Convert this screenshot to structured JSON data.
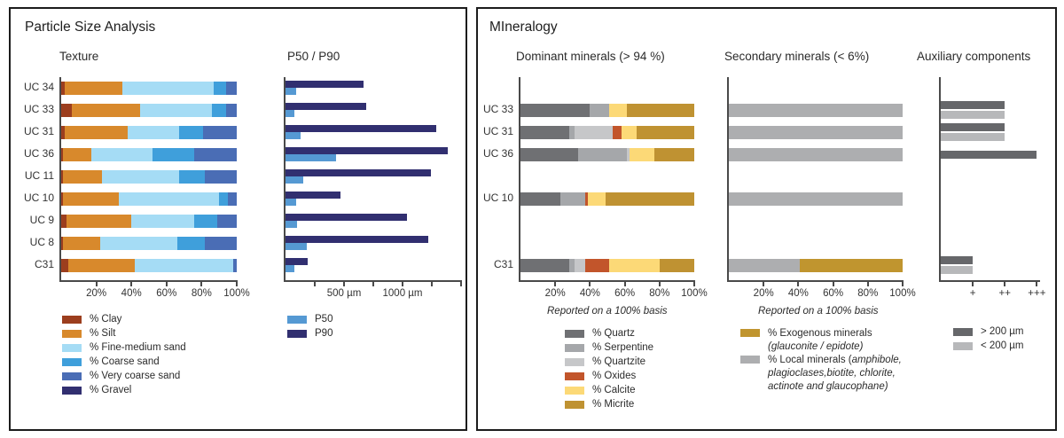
{
  "panels": {
    "particle_size": {
      "title": "Particle Size Analysis"
    },
    "mineralogy": {
      "title": "MIneralogy"
    }
  },
  "chart_data": [
    {
      "id": "texture",
      "type": "bar",
      "variant": "stacked-horizontal",
      "title": "Texture",
      "categories": [
        "UC 34",
        "UC 33",
        "UC 31",
        "UC 36",
        "UC 11",
        "UC 10",
        "UC 9",
        "UC 8",
        "C31"
      ],
      "series": [
        {
          "name": "% Clay",
          "color": "#9c3e1e",
          "values": [
            2,
            6,
            2,
            1,
            1,
            1,
            3,
            1,
            4
          ]
        },
        {
          "name": "% Silt",
          "color": "#d8892c",
          "values": [
            33,
            39,
            36,
            16,
            22,
            32,
            37,
            21,
            38
          ]
        },
        {
          "name": "% Fine-medium sand",
          "color": "#a5dcf5",
          "values": [
            52,
            41,
            29,
            35,
            44,
            57,
            36,
            44,
            56
          ]
        },
        {
          "name": "% Coarse sand",
          "color": "#3f9fdb",
          "values": [
            7,
            8,
            14,
            24,
            15,
            5,
            13,
            16,
            0
          ]
        },
        {
          "name": "% Very coarse sand",
          "color": "#4a6db5",
          "values": [
            6,
            6,
            19,
            24,
            18,
            5,
            11,
            18,
            2
          ]
        },
        {
          "name": "% Gravel",
          "color": "#312f70",
          "values": [
            0,
            0,
            0,
            0,
            0,
            0,
            0,
            0,
            0
          ]
        }
      ],
      "xlim": [
        0,
        100
      ],
      "xticks": [
        {
          "v": 20,
          "label": "20%"
        },
        {
          "v": 40,
          "label": "40%"
        },
        {
          "v": 60,
          "label": "60%"
        },
        {
          "v": 80,
          "label": "80%"
        },
        {
          "v": 100,
          "label": "100%"
        }
      ]
    },
    {
      "id": "p50p90",
      "type": "bar",
      "variant": "grouped-horizontal",
      "title": "P50 / P90",
      "unit": "µm",
      "categories": [
        "UC 34",
        "UC 33",
        "UC 31",
        "UC 36",
        "UC 11",
        "UC 10",
        "UC 9",
        "UC 8",
        "C31"
      ],
      "series": [
        {
          "name": "P90",
          "color": "#312f70",
          "values": [
            670,
            690,
            1290,
            1390,
            1240,
            470,
            1040,
            1220,
            190
          ]
        },
        {
          "name": "P50",
          "color": "#5599d3",
          "values": [
            90,
            75,
            130,
            430,
            150,
            90,
            100,
            185,
            75
          ]
        }
      ],
      "legend_order": [
        1,
        0
      ],
      "xlim": [
        0,
        1500
      ],
      "xticks": [
        {
          "v": 250,
          "label": ""
        },
        {
          "v": 500,
          "label": "500 µm"
        },
        {
          "v": 750,
          "label": ""
        },
        {
          "v": 1000,
          "label": "1000 µm"
        },
        {
          "v": 1250,
          "label": ""
        },
        {
          "v": 1500,
          "label": ""
        }
      ]
    },
    {
      "id": "dominant",
      "type": "bar",
      "variant": "stacked-horizontal",
      "title": "Dominant minerals (> 94 %)",
      "footnote": "Reported on a 100% basis",
      "categories": [
        "UC 33",
        "UC 31",
        "UC 36",
        "UC 10",
        "C31"
      ],
      "row_slots": [
        1,
        2,
        3,
        5,
        8
      ],
      "series": [
        {
          "name": "% Quartz",
          "color": "#6f7073",
          "values": [
            40,
            28,
            33,
            23,
            28
          ]
        },
        {
          "name": "% Serpentine",
          "color": "#a5a7aa",
          "values": [
            11,
            3,
            28,
            14,
            3
          ]
        },
        {
          "name": "% Quartzite",
          "color": "#c6c7c9",
          "values": [
            0,
            22,
            2,
            0,
            6
          ]
        },
        {
          "name": "% Oxides",
          "color": "#c2552b",
          "values": [
            0,
            5,
            0,
            2,
            14
          ]
        },
        {
          "name": "% Calcite",
          "color": "#fcd977",
          "values": [
            10,
            9,
            14,
            10,
            29
          ]
        },
        {
          "name": "% Micrite",
          "color": "#bf9232",
          "values": [
            39,
            33,
            23,
            51,
            20
          ]
        }
      ],
      "xlim": [
        0,
        100
      ],
      "xticks": [
        {
          "v": 20,
          "label": "20%"
        },
        {
          "v": 40,
          "label": "40%"
        },
        {
          "v": 60,
          "label": "60%"
        },
        {
          "v": 80,
          "label": "80%"
        },
        {
          "v": 100,
          "label": "100%"
        }
      ]
    },
    {
      "id": "secondary",
      "type": "bar",
      "variant": "stacked-horizontal",
      "title": "Secondary minerals (< 6%)",
      "footnote": "Reported on a 100% basis",
      "categories": [
        "UC 33",
        "UC 31",
        "UC 36",
        "UC 10",
        "C31"
      ],
      "row_slots": [
        1,
        2,
        3,
        5,
        8
      ],
      "series": [
        {
          "name": "% Local minerals",
          "color": "#adaeb0",
          "values": [
            100,
            100,
            100,
            100,
            41
          ]
        },
        {
          "name": "% Exogenous minerals",
          "color": "#c0952f",
          "values": [
            0,
            0,
            0,
            0,
            59
          ]
        }
      ],
      "legend_rich": [
        {
          "color": "#c0952f",
          "lines": [
            [
              {
                "t": "% Exogenous minerals"
              }
            ],
            [
              {
                "t": "(glauconite / epidote)",
                "i": true
              }
            ]
          ]
        },
        {
          "color": "#adaeb0",
          "lines": [
            [
              {
                "t": "% Local minerals ("
              },
              {
                "t": "amphibole,",
                "i": true
              }
            ],
            [
              {
                "t": "plagioclases,biotite, chlorite,",
                "i": true
              }
            ],
            [
              {
                "t": "actinote and glaucophane)",
                "i": true
              }
            ]
          ]
        }
      ],
      "xlim": [
        0,
        100
      ],
      "xticks": [
        {
          "v": 20,
          "label": "20%"
        },
        {
          "v": 40,
          "label": "40%"
        },
        {
          "v": 60,
          "label": "60%"
        },
        {
          "v": 80,
          "label": "80%"
        },
        {
          "v": 100,
          "label": "100%"
        }
      ]
    },
    {
      "id": "auxiliary",
      "type": "bar",
      "variant": "grouped-horizontal",
      "title": "Auxiliary components",
      "categories": [
        "UC 33",
        "UC 31",
        "UC 36",
        "UC 10",
        "C31"
      ],
      "row_slots": [
        1,
        2,
        3,
        5,
        8
      ],
      "series": [
        {
          "name": "> 200 µm",
          "color": "#66676a",
          "values": [
            2,
            2,
            3,
            0,
            1
          ]
        },
        {
          "name": "< 200 µm",
          "color": "#b7b8ba",
          "values": [
            2,
            2,
            0,
            0,
            1
          ]
        }
      ],
      "legend_order": [
        0,
        1
      ],
      "xlim": [
        0,
        3.1
      ],
      "xticks": [
        {
          "v": 1,
          "label": "+"
        },
        {
          "v": 2,
          "label": "++"
        },
        {
          "v": 3,
          "label": "+++"
        }
      ]
    }
  ]
}
